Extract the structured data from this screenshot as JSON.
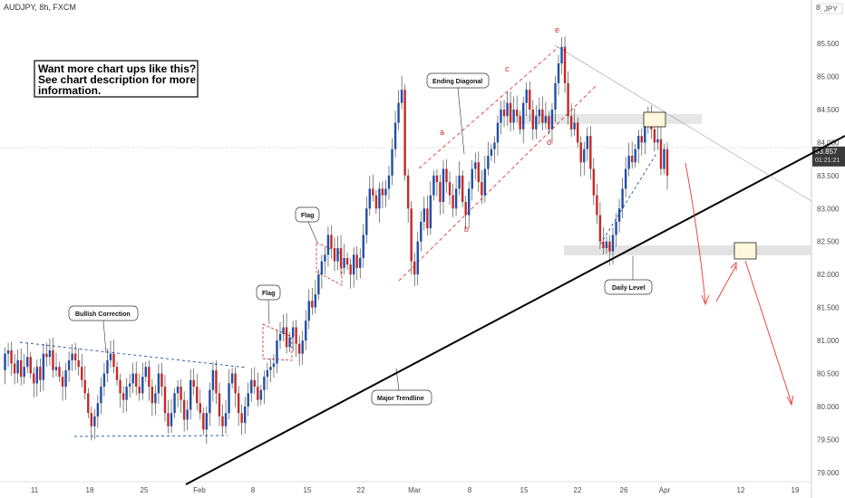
{
  "header": {
    "symbol_title": "AUDJPY, 8h, FXCM"
  },
  "price_scale": {
    "top_label": "8",
    "currency_badge": "JPY",
    "current_price": "83.857",
    "countdown": "01:21:21",
    "colors": {
      "current_price_bg": "#3a3a3a",
      "bullish": "#1f4fa8",
      "bearish": "#c62828"
    }
  },
  "promo": {
    "line1": "Want more chart ups like this?",
    "line2": "See chart description for more",
    "line3": "information."
  },
  "annotations": {
    "bullish_correction": "Bullish Correction",
    "flag_1": "Flag",
    "flag_2": "Flag",
    "ending_diagonal": "Ending Diagonal",
    "daily_level": "Daily Level",
    "major_trendline": "Major Trendline",
    "wave_a": "a",
    "wave_b": "b",
    "wave_c": "c",
    "wave_d": "d",
    "wave_e": "e"
  },
  "chart_data": {
    "type": "candlestick",
    "title": "AUDJPY, 8h, FXCM",
    "x_tick_labels": [
      "11",
      "18",
      "25",
      "Feb",
      "8",
      "15",
      "22",
      "Mar",
      "8",
      "15",
      "22",
      "26",
      "Apr",
      "12",
      "19"
    ],
    "y_tick_labels": [
      "79.000",
      "79.500",
      "80.000",
      "80.500",
      "81.000",
      "81.500",
      "82.000",
      "82.500",
      "83.000",
      "83.500",
      "84.000",
      "84.500",
      "85.000",
      "85.500"
    ],
    "ylim": [
      78.86,
      86.16
    ],
    "current_price": 83.857,
    "grid": false,
    "closes_by_segment": [
      {
        "from": 0,
        "to": 12,
        "closes": [
          80.55,
          80.8,
          80.85,
          80.65,
          80.5,
          80.7,
          80.45,
          80.6,
          80.75,
          80.5,
          80.35,
          80.6,
          80.4
        ]
      },
      {
        "from": 12,
        "to": 40,
        "closes": [
          80.4,
          80.8,
          80.75,
          80.85,
          80.55,
          80.6,
          80.45,
          80.3,
          80.55,
          80.7,
          80.8,
          80.7,
          80.6,
          80.4,
          80.2,
          79.9,
          79.7,
          79.85,
          80.05,
          80.3,
          80.5,
          80.7,
          80.8,
          80.6,
          80.4,
          80.2,
          80.1,
          80.3,
          80.35
        ]
      },
      {
        "from": 40,
        "to": 85,
        "closes": [
          80.35,
          80.5,
          80.3,
          80.2,
          80.45,
          80.6,
          80.3,
          80.05,
          80.2,
          80.5,
          80.3,
          79.9,
          79.7,
          79.9,
          80.2,
          80.3,
          80.1,
          79.8,
          79.95,
          80.4,
          80.3,
          80.05,
          79.9,
          79.65,
          79.9,
          80.25,
          80.55,
          80.2,
          79.85,
          79.7,
          79.9,
          80.35,
          80.5,
          80.2,
          79.9,
          79.75,
          80.0,
          80.2,
          80.4,
          80.3,
          80.1,
          80.25,
          80.45,
          80.55,
          80.6,
          80.65
        ]
      },
      {
        "from": 85,
        "to": 125,
        "closes": [
          80.65,
          81.0,
          81.1,
          81.2,
          80.9,
          81.05,
          81.2,
          80.95,
          80.8,
          81.0,
          81.3,
          81.6,
          81.5,
          81.7,
          82.0,
          82.2,
          82.3,
          82.6,
          82.4,
          82.2,
          82.4,
          82.1,
          82.25,
          82.15,
          82.0,
          82.3,
          82.1,
          82.25,
          82.6,
          83.0,
          83.3,
          83.2,
          83.0,
          83.3,
          83.2,
          83.3,
          83.5,
          83.9,
          84.3,
          84.6,
          84.8
        ]
      },
      {
        "from": 125,
        "to": 137,
        "closes": [
          84.8,
          83.5,
          83.0,
          82.2,
          82.0,
          82.5,
          82.8,
          83.0,
          82.7,
          83.2,
          83.5,
          83.4,
          83.1
        ]
      },
      {
        "from": 137,
        "to": 156,
        "closes": [
          83.1,
          83.6,
          83.4,
          83.2,
          83.0,
          83.3,
          83.5,
          83.1,
          82.9,
          83.3,
          83.6,
          83.7,
          83.4,
          83.2,
          83.6,
          83.8,
          83.9,
          84.0,
          84.3,
          84.5
        ]
      },
      {
        "from": 156,
        "to": 175,
        "closes": [
          84.5,
          84.4,
          84.6,
          84.3,
          84.5,
          84.4,
          84.2,
          84.6,
          84.8,
          84.5,
          84.2,
          84.4,
          84.5,
          84.3,
          84.4,
          84.2,
          84.5,
          84.9,
          85.2,
          85.45
        ]
      },
      {
        "from": 175,
        "to": 190,
        "closes": [
          85.45,
          84.9,
          84.4,
          84.2,
          84.3,
          84.0,
          83.7,
          83.9,
          84.1,
          83.6,
          83.2,
          82.9,
          82.5,
          82.4,
          82.5,
          82.35
        ]
      },
      {
        "from": 190,
        "to": 204,
        "closes": [
          82.35,
          82.6,
          82.8,
          83.0,
          83.3,
          83.6,
          83.8,
          83.7,
          83.9,
          84.1,
          84.0,
          84.3,
          84.4,
          84.2,
          84.0
        ]
      },
      {
        "from": 204,
        "to": 208,
        "closes": [
          84.0,
          84.05,
          83.6,
          83.9,
          83.5
        ]
      }
    ],
    "levels": {
      "daily_level": 82.35,
      "resistance_zone": 84.3
    }
  }
}
